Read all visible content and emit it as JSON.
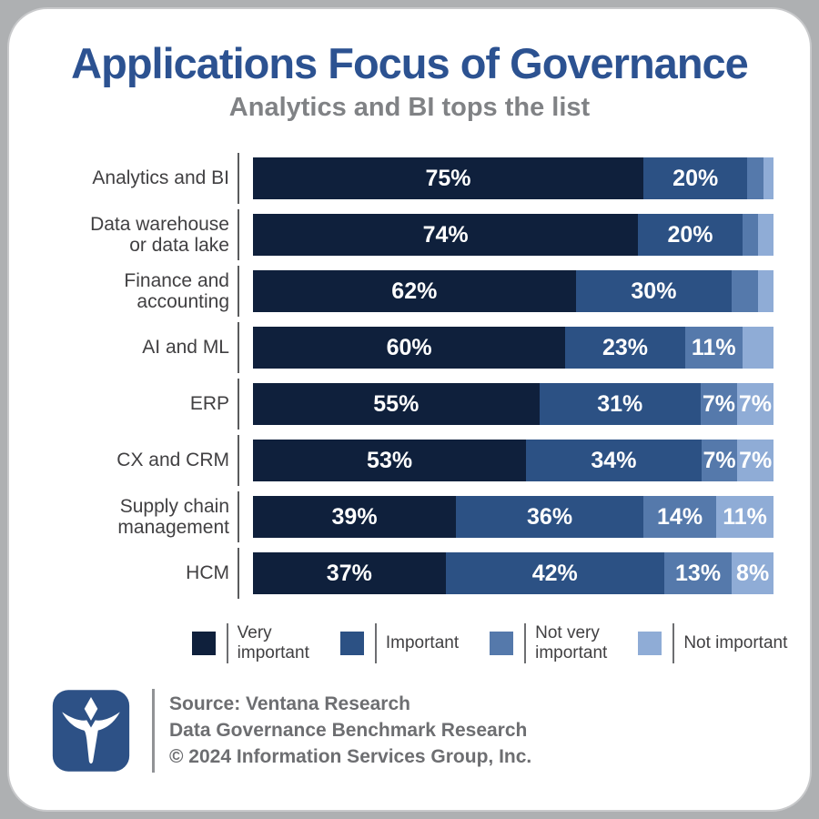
{
  "header": {
    "title": "Applications Focus of Governance",
    "subtitle": "Analytics and BI tops the list"
  },
  "chart_data": {
    "type": "bar",
    "variant": "horizontal-stacked-100",
    "title": "Applications Focus of Governance",
    "subtitle": "Analytics and BI tops the list",
    "unit": "%",
    "xlim": [
      0,
      100
    ],
    "grid": false,
    "legend_position": "bottom",
    "categories": [
      "Analytics and BI",
      "Data warehouse or data lake",
      "Finance and accounting",
      "AI and ML",
      "ERP",
      "CX and CRM",
      "Supply chain management",
      "HCM"
    ],
    "category_label_lines": [
      [
        "Analytics and BI"
      ],
      [
        "Data warehouse",
        "or data lake"
      ],
      [
        "Finance and",
        "accounting"
      ],
      [
        "AI and ML"
      ],
      [
        "ERP"
      ],
      [
        "CX and CRM"
      ],
      [
        "Supply chain",
        "management"
      ],
      [
        "HCM"
      ]
    ],
    "series": [
      {
        "name": "Very important",
        "color": "#0F203C",
        "values": [
          75,
          74,
          62,
          60,
          55,
          53,
          39,
          37
        ]
      },
      {
        "name": "Important",
        "color": "#2C5184",
        "values": [
          20,
          20,
          30,
          23,
          31,
          34,
          36,
          42
        ]
      },
      {
        "name": "Not very important",
        "color": "#5579AB",
        "values": [
          3,
          3,
          5,
          11,
          7,
          7,
          14,
          13
        ]
      },
      {
        "name": "Not important",
        "color": "#8FACD6",
        "values": [
          2,
          3,
          3,
          6,
          7,
          7,
          11,
          8
        ]
      }
    ],
    "value_labels_shown": [
      [
        "75%",
        "20%",
        "",
        ""
      ],
      [
        "74%",
        "20%",
        "",
        ""
      ],
      [
        "62%",
        "30%",
        "",
        ""
      ],
      [
        "60%",
        "23%",
        "11%",
        ""
      ],
      [
        "55%",
        "31%",
        "7%",
        "7%"
      ],
      [
        "53%",
        "34%",
        "7%",
        "7%"
      ],
      [
        "39%",
        "36%",
        "14%",
        "11%"
      ],
      [
        "37%",
        "42%",
        "13%",
        "8%"
      ]
    ]
  },
  "legend": {
    "items": [
      {
        "label": "Very important",
        "label_lines": [
          "Very",
          "important"
        ],
        "color": "#0F203C"
      },
      {
        "label": "Important",
        "label_lines": [
          "Important"
        ],
        "color": "#2C5184"
      },
      {
        "label": "Not very important",
        "label_lines": [
          "Not very",
          "important"
        ],
        "color": "#5579AB"
      },
      {
        "label": "Not important",
        "label_lines": [
          "Not important"
        ],
        "color": "#8FACD6"
      }
    ]
  },
  "footer": {
    "logo": "ventana-research-logo",
    "logo_color": "#2D5186",
    "lines": [
      "Source: Ventana Research",
      "Data Governance Benchmark Research",
      "© 2024 Information Services Group, Inc."
    ]
  },
  "colors": {
    "title": "#2C5291",
    "subtitle": "#808285",
    "category_label": "#414042",
    "value_label": "#FFFFFF",
    "footer_text": "#6D6E71",
    "card_background": "#FFFFFF",
    "page_background": "#AEB0B2"
  }
}
